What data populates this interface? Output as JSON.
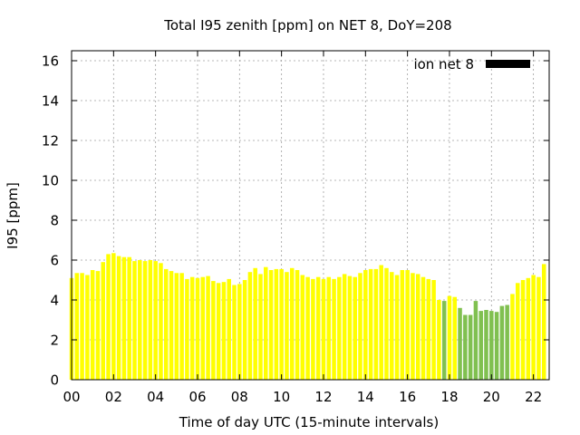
{
  "chart_data": {
    "type": "bar",
    "title": "Total I95 zenith [ppm] on NET 8, DoY=208",
    "xlabel": "Time of day UTC (15-minute intervals)",
    "ylabel": "I95 [ppm]",
    "xlim": [
      0,
      22.75
    ],
    "ylim": [
      0,
      16.5
    ],
    "xticks": [
      "00",
      "02",
      "04",
      "06",
      "08",
      "10",
      "12",
      "14",
      "16",
      "18",
      "20",
      "22"
    ],
    "yticks": [
      "0",
      "2",
      "4",
      "6",
      "8",
      "10",
      "12",
      "14",
      "16"
    ],
    "grid": true,
    "legend": {
      "position": "top-right",
      "entries": [
        "ion net 8"
      ]
    },
    "colors": {
      "yellow": "#ffff00",
      "green": "#80c050",
      "legend": "#000000",
      "grid": "#a0a0a0"
    },
    "x": [
      0.0,
      0.25,
      0.5,
      0.75,
      1.0,
      1.25,
      1.5,
      1.75,
      2.0,
      2.25,
      2.5,
      2.75,
      3.0,
      3.25,
      3.5,
      3.75,
      4.0,
      4.25,
      4.5,
      4.75,
      5.0,
      5.25,
      5.5,
      5.75,
      6.0,
      6.25,
      6.5,
      6.75,
      7.0,
      7.25,
      7.5,
      7.75,
      8.0,
      8.25,
      8.5,
      8.75,
      9.0,
      9.25,
      9.5,
      9.75,
      10.0,
      10.25,
      10.5,
      10.75,
      11.0,
      11.25,
      11.5,
      11.75,
      12.0,
      12.25,
      12.5,
      12.75,
      13.0,
      13.25,
      13.5,
      13.75,
      14.0,
      14.25,
      14.5,
      14.75,
      15.0,
      15.25,
      15.5,
      15.75,
      16.0,
      16.25,
      16.5,
      16.75,
      17.0,
      17.25,
      17.5,
      17.75,
      18.0,
      18.25,
      18.5,
      18.75,
      19.0,
      19.25,
      19.5,
      19.75,
      20.0,
      20.25,
      20.5,
      20.75,
      21.0,
      21.25,
      21.5,
      21.75,
      22.0,
      22.25,
      22.5
    ],
    "series": [
      {
        "values": [
          5.1,
          5.35,
          5.35,
          5.25,
          5.5,
          5.45,
          5.9,
          6.3,
          6.35,
          6.2,
          6.15,
          6.15,
          5.95,
          6.0,
          5.95,
          6.0,
          5.95,
          5.85,
          5.55,
          5.45,
          5.35,
          5.35,
          5.05,
          5.15,
          5.1,
          5.15,
          5.2,
          4.95,
          4.85,
          4.9,
          5.05,
          4.75,
          4.8,
          5.0,
          5.4,
          5.6,
          5.3,
          5.65,
          5.5,
          5.55,
          5.55,
          5.4,
          5.6,
          5.5,
          5.25,
          5.15,
          5.05,
          5.15,
          5.05,
          5.15,
          5.05,
          5.15,
          5.3,
          5.2,
          5.15,
          5.35,
          5.5,
          5.55,
          5.55,
          5.75,
          5.6,
          5.4,
          5.25,
          5.5,
          5.5,
          5.35,
          5.3,
          5.15,
          5.05,
          5.0,
          4.0,
          3.95,
          4.2,
          4.15,
          3.6,
          3.25,
          3.25,
          3.95,
          3.45,
          3.5,
          3.45,
          3.4,
          3.7,
          3.75,
          4.3,
          4.85,
          5.0,
          5.1,
          5.25,
          5.15,
          5.8
        ],
        "colors": [
          "yellow",
          "yellow",
          "yellow",
          "yellow",
          "yellow",
          "yellow",
          "yellow",
          "yellow",
          "yellow",
          "yellow",
          "yellow",
          "yellow",
          "yellow",
          "yellow",
          "yellow",
          "yellow",
          "yellow",
          "yellow",
          "yellow",
          "yellow",
          "yellow",
          "yellow",
          "yellow",
          "yellow",
          "yellow",
          "yellow",
          "yellow",
          "yellow",
          "yellow",
          "yellow",
          "yellow",
          "yellow",
          "yellow",
          "yellow",
          "yellow",
          "yellow",
          "yellow",
          "yellow",
          "yellow",
          "yellow",
          "yellow",
          "yellow",
          "yellow",
          "yellow",
          "yellow",
          "yellow",
          "yellow",
          "yellow",
          "yellow",
          "yellow",
          "yellow",
          "yellow",
          "yellow",
          "yellow",
          "yellow",
          "yellow",
          "yellow",
          "yellow",
          "yellow",
          "yellow",
          "yellow",
          "yellow",
          "yellow",
          "yellow",
          "yellow",
          "yellow",
          "yellow",
          "yellow",
          "yellow",
          "yellow",
          "yellow",
          "green",
          "yellow",
          "yellow",
          "green",
          "green",
          "green",
          "green",
          "green",
          "green",
          "green",
          "green",
          "green",
          "green",
          "yellow",
          "yellow",
          "yellow",
          "yellow",
          "yellow",
          "yellow",
          "yellow"
        ]
      }
    ]
  }
}
